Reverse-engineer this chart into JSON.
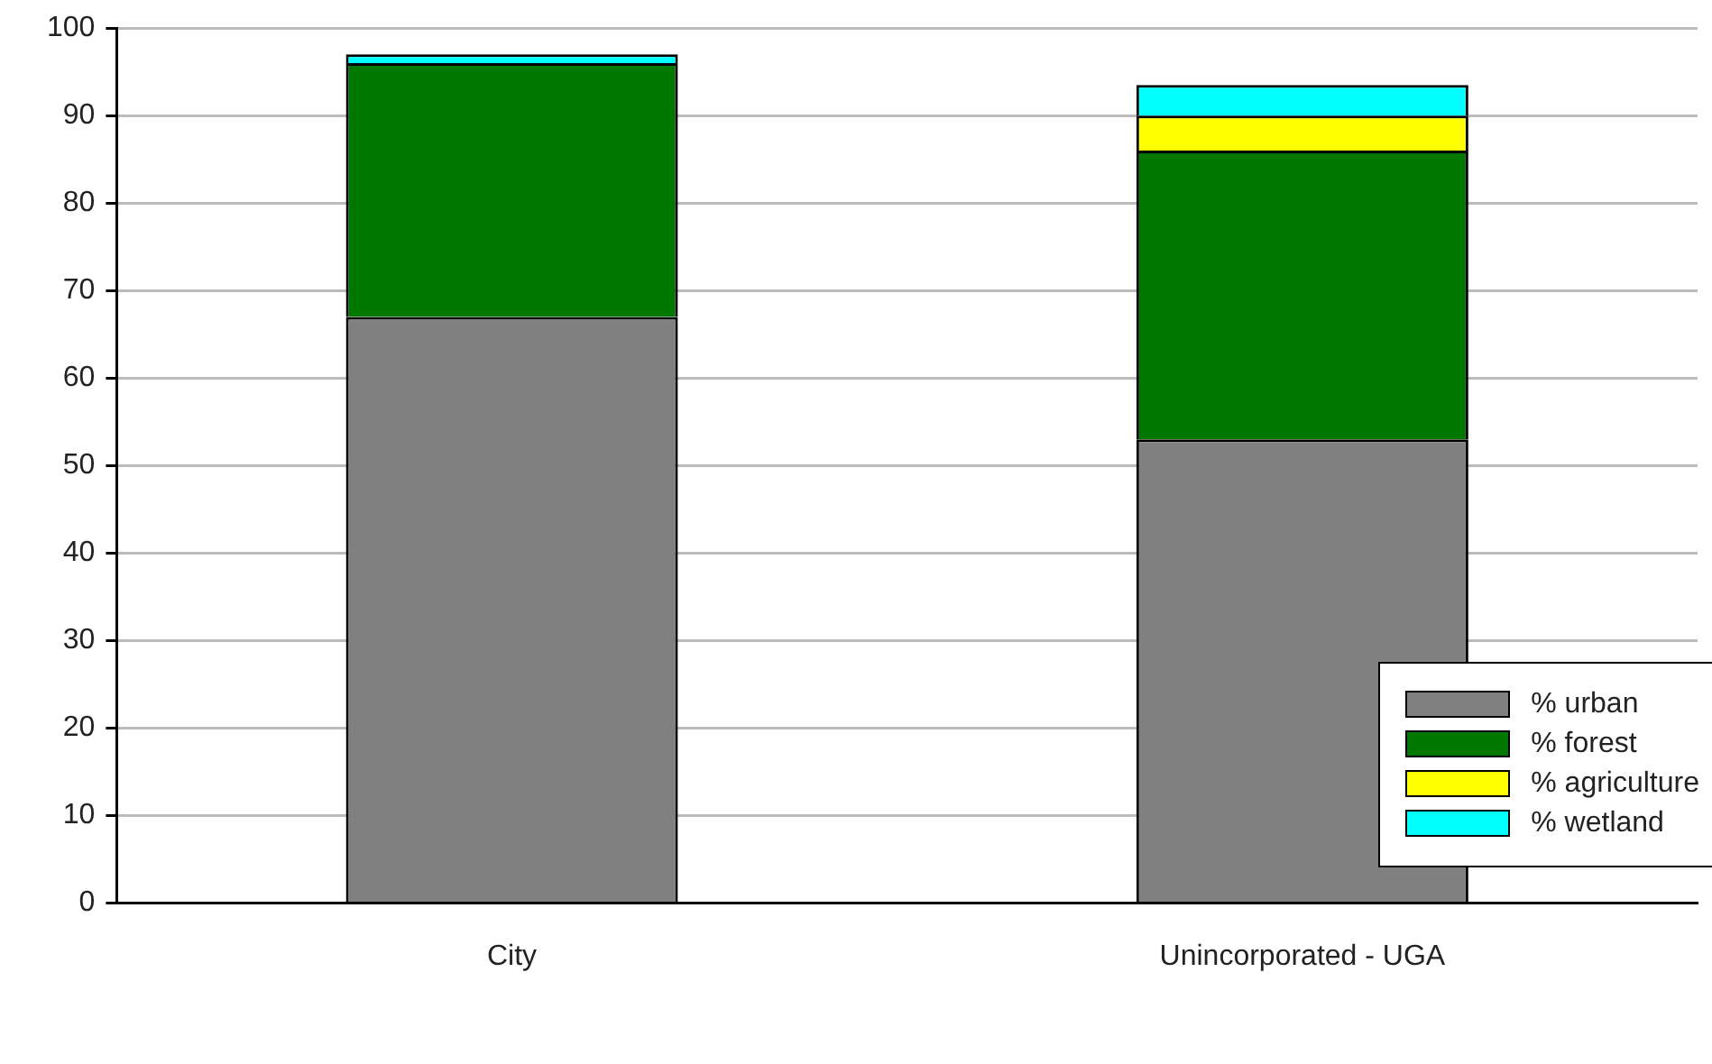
{
  "chart_data": {
    "type": "bar",
    "stacked": true,
    "categories": [
      "City",
      "Unincorporated - UGA"
    ],
    "series": [
      {
        "name": "% urban",
        "color": "#808080",
        "values": [
          67,
          53
        ]
      },
      {
        "name": "% forest",
        "color": "#007800",
        "values": [
          29,
          33
        ]
      },
      {
        "name": "% agriculture",
        "color": "#ffff00",
        "values": [
          0,
          4
        ]
      },
      {
        "name": "% wetland",
        "color": "#00ffff",
        "values": [
          1,
          3.5
        ]
      }
    ],
    "ylim": [
      0,
      100
    ],
    "yticks": [
      0,
      10,
      20,
      30,
      40,
      50,
      60,
      70,
      80,
      90,
      100
    ],
    "grid": "y",
    "legend": "bottom right"
  }
}
